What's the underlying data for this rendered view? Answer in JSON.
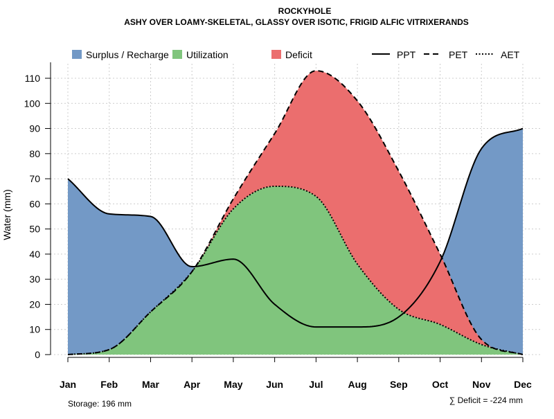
{
  "chart_data": {
    "type": "area",
    "title": "ROCKYHOLE",
    "subtitle": "ASHY OVER LOAMY-SKELETAL, GLASSY OVER ISOTIC, FRIGID ALFIC VITRIXERANDS",
    "xlabel": "",
    "ylabel": "Water (mm)",
    "ylim": [
      0,
      115
    ],
    "yticks": [
      0,
      10,
      20,
      30,
      40,
      50,
      60,
      70,
      80,
      90,
      100,
      110
    ],
    "grid": true,
    "legend_position": "top",
    "categories": [
      "Jan",
      "Feb",
      "Mar",
      "Apr",
      "May",
      "Jun",
      "Jul",
      "Aug",
      "Sep",
      "Oct",
      "Nov",
      "Dec"
    ],
    "series": [
      {
        "name": "PPT",
        "style": "solid",
        "values": [
          70,
          56,
          55,
          35,
          38,
          20,
          11,
          11,
          15,
          37,
          82,
          90
        ]
      },
      {
        "name": "PET",
        "style": "dashed",
        "values": [
          0,
          2,
          17,
          33,
          62,
          88,
          113,
          101,
          73,
          40,
          6,
          0
        ]
      },
      {
        "name": "AET",
        "style": "dotted",
        "values": [
          0,
          2,
          17,
          33,
          58,
          67,
          63,
          36,
          18,
          12,
          4,
          0
        ]
      }
    ],
    "areas": [
      {
        "name": "Surplus / Recharge",
        "color": "#7399c6"
      },
      {
        "name": "Utilization",
        "color": "#80c57d"
      },
      {
        "name": "Deficit",
        "color": "#eb6e6e"
      }
    ],
    "storage_label": "Storage: 196 mm",
    "deficit_label": "∑ Deficit = -224 mm"
  }
}
